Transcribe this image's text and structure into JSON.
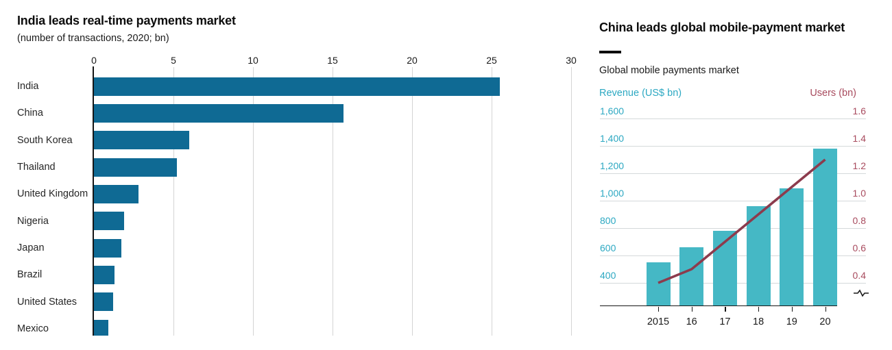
{
  "colors": {
    "left_bar": "#0f6a94",
    "right_bar": "#45b8c5",
    "line": "#8c3b4d",
    "revenue_text": "#2ca8c2",
    "users_text": "#a84b5e",
    "grid_left": "#d4d4d4",
    "grid_right": "#d4d9da",
    "axis": "#151515",
    "text_dark": "#1a1a1a"
  },
  "chart_data": [
    {
      "type": "bar",
      "orientation": "horizontal",
      "title": "India leads real-time payments market",
      "subtitle": "(number of transactions, 2020; bn)",
      "categories": [
        "India",
        "China",
        "South Korea",
        "Thailand",
        "United Kingdom",
        "Nigeria",
        "Japan",
        "Brazil",
        "United States",
        "Mexico"
      ],
      "values": [
        25.5,
        15.7,
        6.0,
        5.2,
        2.8,
        1.9,
        1.7,
        1.3,
        1.2,
        0.9
      ],
      "xlim": [
        0,
        30
      ],
      "x_ticks": [
        0,
        5,
        10,
        15,
        20,
        25,
        30
      ],
      "grid": "vertical",
      "legend_position": "none"
    },
    {
      "type": "combo",
      "title": "China leads global mobile-payment market",
      "kicker": "Global mobile payments market",
      "categories": [
        "2015",
        "16",
        "17",
        "18",
        "19",
        "20"
      ],
      "series": [
        {
          "name": "Revenue (US$ bn)",
          "type": "bar",
          "axis": "left",
          "values": [
            550,
            660,
            780,
            960,
            1090,
            1380
          ]
        },
        {
          "name": "Users (bn)",
          "type": "line",
          "axis": "right",
          "values": [
            0.4,
            0.5,
            0.7,
            0.9,
            1.1,
            1.3
          ]
        }
      ],
      "left_axis": {
        "tick_labels": [
          "1,600",
          "1,400",
          "1,200",
          "1,000",
          "800",
          "600",
          "400"
        ],
        "tick_values": [
          1600,
          1400,
          1200,
          1000,
          800,
          600,
          400
        ],
        "broken_axis": true
      },
      "right_axis": {
        "tick_labels": [
          "1.6",
          "1.4",
          "1.2",
          "1.0",
          "0.8",
          "0.6",
          "0.4"
        ],
        "tick_values": [
          1.6,
          1.4,
          1.2,
          1.0,
          0.8,
          0.6,
          0.4
        ],
        "broken_axis": true
      },
      "grid": "horizontal",
      "axis_break_marker": "squiggle"
    }
  ]
}
